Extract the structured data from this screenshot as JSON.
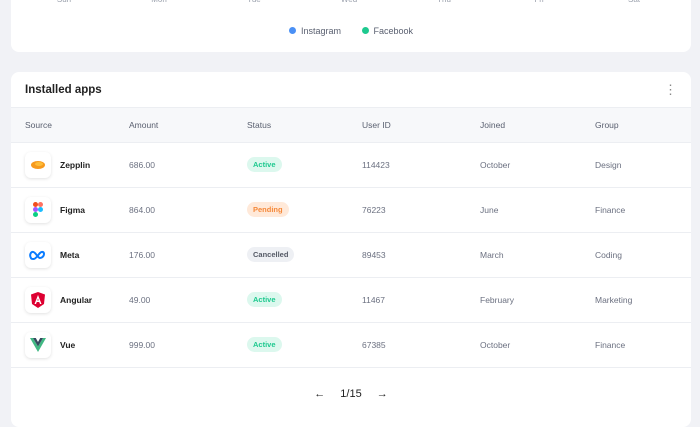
{
  "chart": {
    "days": [
      "Sun",
      "Mon",
      "Tue",
      "Wed",
      "Thu",
      "Fri",
      "Sat"
    ],
    "legend": [
      {
        "label": "Instagram",
        "color": "#4a90f5"
      },
      {
        "label": "Facebook",
        "color": "#1ec98f"
      }
    ]
  },
  "apps": {
    "title": "Installed apps",
    "columns": [
      "Source",
      "Amount",
      "Status",
      "User ID",
      "Joined",
      "Group"
    ],
    "rows": [
      {
        "source": "Zepplin",
        "icon": "zeplin-icon",
        "amount": "686.00",
        "status": "Active",
        "user_id": "114423",
        "joined": "October",
        "group": "Design"
      },
      {
        "source": "Figma",
        "icon": "figma-icon",
        "amount": "864.00",
        "status": "Pending",
        "user_id": "76223",
        "joined": "June",
        "group": "Finance"
      },
      {
        "source": "Meta",
        "icon": "meta-icon",
        "amount": "176.00",
        "status": "Cancelled",
        "user_id": "89453",
        "joined": "March",
        "group": "Coding"
      },
      {
        "source": "Angular",
        "icon": "angular-icon",
        "amount": "49.00",
        "status": "Active",
        "user_id": "11467",
        "joined": "February",
        "group": "Marketing"
      },
      {
        "source": "Vue",
        "icon": "vue-icon",
        "amount": "999.00",
        "status": "Active",
        "user_id": "67385",
        "joined": "October",
        "group": "Finance"
      }
    ],
    "status_colors": {
      "Active": {
        "bg": "#dcf8ee",
        "fg": "#1ec98f"
      },
      "Pending": {
        "bg": "#ffe9d9",
        "fg": "#f5893a"
      },
      "Cancelled": {
        "bg": "#eef0f4",
        "fg": "#555a66"
      }
    },
    "pagination": {
      "prev": "←",
      "page": "1/15",
      "next": "→"
    }
  }
}
